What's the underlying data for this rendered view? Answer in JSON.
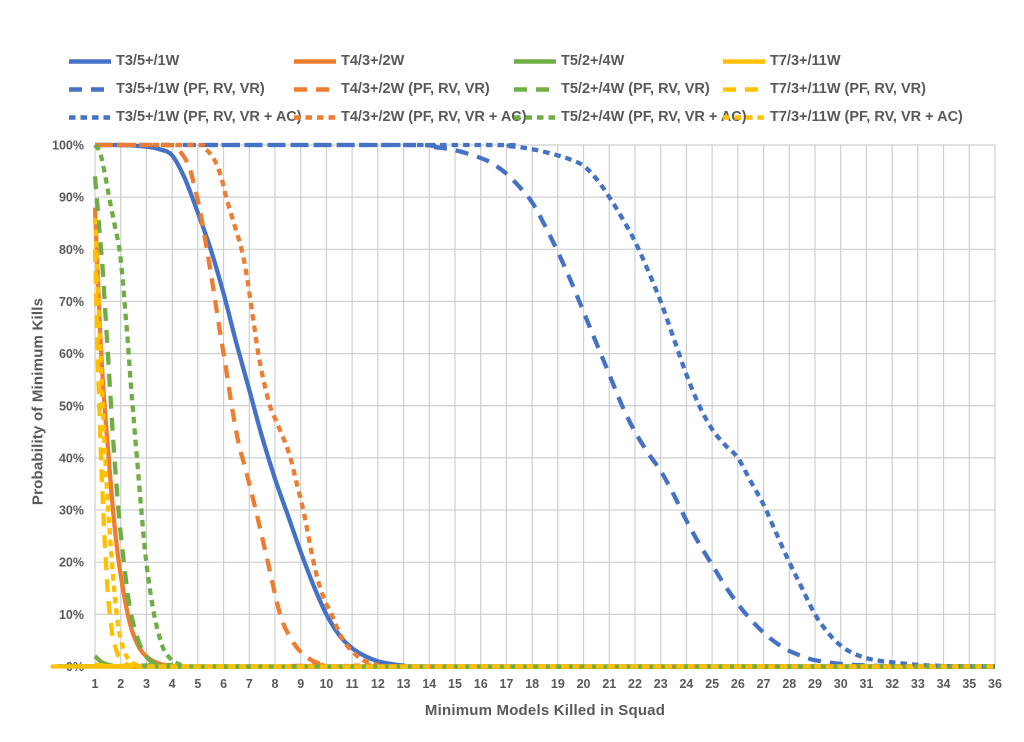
{
  "chart_data": {
    "type": "line",
    "title": "",
    "xlabel": "Minimum Models Killed in Squad",
    "ylabel": "Probability of Minimum Kills",
    "x_range": [
      1,
      36
    ],
    "x_tick_step": 1,
    "x_tick_labels": [
      "1",
      "2",
      "3",
      "4",
      "5",
      "6",
      "7",
      "8",
      "9",
      "10",
      "11",
      "12",
      "13",
      "14",
      "15",
      "16",
      "17",
      "18",
      "19",
      "20",
      "21",
      "22",
      "23",
      "24",
      "25",
      "26",
      "27",
      "28",
      "29",
      "30",
      "31",
      "32",
      "33",
      "34",
      "35",
      "36"
    ],
    "y_range_percent": [
      0,
      100
    ],
    "y_tick_step_percent": 10,
    "y_tick_labels": [
      "0%",
      "10%",
      "20%",
      "30%",
      "40%",
      "50%",
      "60%",
      "70%",
      "80%",
      "90%",
      "100%"
    ],
    "grid": true,
    "legend_position": "top",
    "colors": {
      "grid": "#cfcfcf",
      "text": "#595959",
      "background": "#ffffff",
      "blue": "#4472C4",
      "orange": "#ED7D31",
      "green": "#70AD47",
      "yellow": "#FFC000"
    },
    "series": [
      {
        "id": "t3-base",
        "name": "T3/5+/1W",
        "color": "#4472C4",
        "dash": "solid",
        "points": [
          [
            1,
            100
          ],
          [
            2,
            100
          ],
          [
            3,
            99.7
          ],
          [
            3.5,
            99.2
          ],
          [
            4,
            98
          ],
          [
            4.5,
            93.5
          ],
          [
            5,
            87
          ],
          [
            5.5,
            80
          ],
          [
            6,
            71.5
          ],
          [
            6.5,
            62
          ],
          [
            7,
            53
          ],
          [
            7.5,
            44
          ],
          [
            8,
            36
          ],
          [
            8.5,
            29
          ],
          [
            9,
            22
          ],
          [
            9.5,
            15.5
          ],
          [
            10,
            10
          ],
          [
            10.5,
            6
          ],
          [
            11,
            3.5
          ],
          [
            11.5,
            2
          ],
          [
            12,
            1
          ],
          [
            12.5,
            0.5
          ],
          [
            13,
            0.2
          ],
          [
            14,
            0
          ],
          [
            36,
            0
          ]
        ]
      },
      {
        "id": "t4-base",
        "name": "T4/3+/2W",
        "color": "#ED7D31",
        "dash": "solid",
        "points": [
          [
            1,
            88
          ],
          [
            1.1,
            76
          ],
          [
            1.2,
            64
          ],
          [
            1.3,
            55
          ],
          [
            1.4,
            48
          ],
          [
            1.5,
            42
          ],
          [
            1.7,
            30
          ],
          [
            1.9,
            21
          ],
          [
            2.1,
            14.5
          ],
          [
            2.3,
            9.5
          ],
          [
            2.5,
            6
          ],
          [
            2.8,
            3
          ],
          [
            3.2,
            1.2
          ],
          [
            3.6,
            0.4
          ],
          [
            4,
            0.1
          ],
          [
            4.5,
            0
          ],
          [
            36,
            0
          ]
        ]
      },
      {
        "id": "t5-base",
        "name": "T5/2+/4W",
        "color": "#70AD47",
        "dash": "solid",
        "points": [
          [
            1,
            2
          ],
          [
            1.3,
            0.7
          ],
          [
            1.7,
            0.15
          ],
          [
            2.2,
            0
          ],
          [
            36,
            0
          ]
        ]
      },
      {
        "id": "t7-base",
        "name": "T7/3+/11W",
        "color": "#FFC000",
        "dash": "solid",
        "points": [
          [
            1,
            0.4
          ],
          [
            1.5,
            0.05
          ],
          [
            2,
            0
          ],
          [
            36,
            0
          ]
        ]
      },
      {
        "id": "t3-pf-rv-vr",
        "name": "T3/5+/1W (PF, RV, VR)",
        "color": "#4472C4",
        "dash": "long-dash",
        "points": [
          [
            1,
            100
          ],
          [
            13,
            100
          ],
          [
            14,
            99.7
          ],
          [
            15,
            99
          ],
          [
            16,
            97.5
          ],
          [
            16.5,
            96.3
          ],
          [
            17,
            94.5
          ],
          [
            17.5,
            92
          ],
          [
            18,
            89
          ],
          [
            18.5,
            84.5
          ],
          [
            19,
            79.5
          ],
          [
            19.5,
            74
          ],
          [
            20,
            68
          ],
          [
            20.5,
            62
          ],
          [
            21,
            56
          ],
          [
            21.5,
            50
          ],
          [
            22,
            45
          ],
          [
            22.5,
            41
          ],
          [
            23,
            37.5
          ],
          [
            23.5,
            33
          ],
          [
            24,
            28
          ],
          [
            24.5,
            23.5
          ],
          [
            25,
            19.5
          ],
          [
            25.5,
            15.5
          ],
          [
            26,
            12
          ],
          [
            26.5,
            9
          ],
          [
            27,
            6.5
          ],
          [
            27.5,
            4.5
          ],
          [
            28,
            3
          ],
          [
            28.5,
            2
          ],
          [
            29,
            1.2
          ],
          [
            30,
            0.5
          ],
          [
            31,
            0.2
          ],
          [
            32,
            0.05
          ],
          [
            33,
            0
          ],
          [
            36,
            0
          ]
        ]
      },
      {
        "id": "t4-pf-rv-vr",
        "name": "T4/3+/2W (PF, RV, VR)",
        "color": "#ED7D31",
        "dash": "long-dash",
        "points": [
          [
            1,
            100
          ],
          [
            3.8,
            100
          ],
          [
            4.2,
            99.3
          ],
          [
            4.6,
            96.5
          ],
          [
            4.85,
            92.5
          ],
          [
            5.1,
            87
          ],
          [
            5.35,
            80
          ],
          [
            5.6,
            72.5
          ],
          [
            5.85,
            64.5
          ],
          [
            6.1,
            57
          ],
          [
            6.35,
            49
          ],
          [
            6.6,
            42.5
          ],
          [
            6.9,
            37
          ],
          [
            7.3,
            29
          ],
          [
            7.7,
            20.5
          ],
          [
            8.2,
            10
          ],
          [
            8.6,
            5.5
          ],
          [
            9,
            2.8
          ],
          [
            9.5,
            1
          ],
          [
            10,
            0.3
          ],
          [
            10.6,
            0
          ],
          [
            36,
            0
          ]
        ]
      },
      {
        "id": "t5-pf-rv-vr",
        "name": "T5/2+/4W (PF, RV, VR)",
        "color": "#70AD47",
        "dash": "long-dash",
        "points": [
          [
            1,
            94
          ],
          [
            1.1,
            88
          ],
          [
            1.2,
            82
          ],
          [
            1.3,
            76
          ],
          [
            1.4,
            68
          ],
          [
            1.5,
            60
          ],
          [
            1.6,
            52
          ],
          [
            1.7,
            44
          ],
          [
            1.8,
            37
          ],
          [
            1.95,
            28
          ],
          [
            2.1,
            21
          ],
          [
            2.3,
            13
          ],
          [
            2.5,
            8
          ],
          [
            2.8,
            3.5
          ],
          [
            3.1,
            1.3
          ],
          [
            3.5,
            0.3
          ],
          [
            4,
            0
          ],
          [
            36,
            0
          ]
        ]
      },
      {
        "id": "t7-pf-rv-vr",
        "name": "T7/3+/11W (PF, RV, VR)",
        "color": "#FFC000",
        "dash": "long-dash",
        "points": [
          [
            1,
            80
          ],
          [
            1.03,
            74
          ],
          [
            1.07,
            66
          ],
          [
            1.12,
            57
          ],
          [
            1.18,
            48
          ],
          [
            1.25,
            38
          ],
          [
            1.32,
            30
          ],
          [
            1.4,
            22
          ],
          [
            1.5,
            14
          ],
          [
            1.6,
            9
          ],
          [
            1.7,
            5.5
          ],
          [
            1.85,
            2.8
          ],
          [
            2,
            1.3
          ],
          [
            2.2,
            0.5
          ],
          [
            2.5,
            0.1
          ],
          [
            2.9,
            0
          ],
          [
            36,
            0
          ]
        ]
      },
      {
        "id": "t3-pf-rv-vr-ac",
        "name": "T3/5+/1W (PF, RV, VR + AC)",
        "color": "#4472C4",
        "dash": "short-dash",
        "points": [
          [
            1,
            100
          ],
          [
            16,
            100
          ],
          [
            17,
            99.8
          ],
          [
            18,
            99.2
          ],
          [
            19,
            98
          ],
          [
            19.5,
            97.2
          ],
          [
            20,
            96
          ],
          [
            20.5,
            93.5
          ],
          [
            21,
            90
          ],
          [
            21.5,
            86
          ],
          [
            22,
            81.5
          ],
          [
            22.5,
            76
          ],
          [
            23,
            70
          ],
          [
            23.5,
            63
          ],
          [
            24,
            56
          ],
          [
            24.5,
            50
          ],
          [
            25,
            45.5
          ],
          [
            25.5,
            42.5
          ],
          [
            26,
            40
          ],
          [
            26.5,
            35.5
          ],
          [
            27,
            31
          ],
          [
            27.5,
            25.5
          ],
          [
            28,
            20
          ],
          [
            28.5,
            15
          ],
          [
            29,
            10
          ],
          [
            29.5,
            6.5
          ],
          [
            30,
            4
          ],
          [
            30.5,
            2.5
          ],
          [
            31,
            1.6
          ],
          [
            31.5,
            1.1
          ],
          [
            32,
            0.8
          ],
          [
            33,
            0.3
          ],
          [
            34,
            0.1
          ],
          [
            35,
            0
          ],
          [
            36,
            0
          ]
        ]
      },
      {
        "id": "t4-pf-rv-vr-ac",
        "name": "T4/3+/2W (PF, RV, VR + AC)",
        "color": "#ED7D31",
        "dash": "short-dash",
        "points": [
          [
            1,
            100
          ],
          [
            4.8,
            100
          ],
          [
            5.2,
            99.6
          ],
          [
            5.6,
            97.5
          ],
          [
            5.9,
            94
          ],
          [
            6.1,
            90
          ],
          [
            6.4,
            85
          ],
          [
            6.7,
            80
          ],
          [
            6.9,
            75
          ],
          [
            7.05,
            70
          ],
          [
            7.2,
            65
          ],
          [
            7.35,
            60
          ],
          [
            7.55,
            55
          ],
          [
            7.8,
            50
          ],
          [
            8.05,
            47
          ],
          [
            8.35,
            43.5
          ],
          [
            8.6,
            40
          ],
          [
            8.85,
            35
          ],
          [
            9.1,
            30
          ],
          [
            9.3,
            25
          ],
          [
            9.5,
            20
          ],
          [
            9.7,
            16
          ],
          [
            9.95,
            12.5
          ],
          [
            10.2,
            10
          ],
          [
            10.5,
            6.5
          ],
          [
            10.8,
            4
          ],
          [
            11.2,
            2
          ],
          [
            11.6,
            0.8
          ],
          [
            12,
            0.3
          ],
          [
            12.6,
            0
          ],
          [
            36,
            0
          ]
        ]
      },
      {
        "id": "t5-pf-rv-vr-ac",
        "name": "T5/2+/4W (PF, RV, VR + AC)",
        "color": "#70AD47",
        "dash": "short-dash",
        "points": [
          [
            1,
            100
          ],
          [
            1.2,
            98.5
          ],
          [
            1.4,
            94
          ],
          [
            1.55,
            90
          ],
          [
            1.75,
            85
          ],
          [
            1.95,
            80
          ],
          [
            2.08,
            74
          ],
          [
            2.18,
            68
          ],
          [
            2.28,
            62
          ],
          [
            2.38,
            55
          ],
          [
            2.48,
            49
          ],
          [
            2.58,
            43
          ],
          [
            2.7,
            36
          ],
          [
            2.82,
            29
          ],
          [
            2.95,
            22
          ],
          [
            3.1,
            16
          ],
          [
            3.3,
            10
          ],
          [
            3.5,
            5.8
          ],
          [
            3.7,
            3
          ],
          [
            4,
            1.2
          ],
          [
            4.3,
            0.4
          ],
          [
            4.8,
            0
          ],
          [
            36,
            0
          ]
        ]
      },
      {
        "id": "t7-pf-rv-vr-ac",
        "name": "T7/3+/11W (PF, RV, VR + AC)",
        "color": "#FFC000",
        "dash": "short-dash",
        "points": [
          [
            1,
            86
          ],
          [
            1.06,
            80
          ],
          [
            1.12,
            72
          ],
          [
            1.2,
            62
          ],
          [
            1.3,
            50
          ],
          [
            1.4,
            40
          ],
          [
            1.5,
            31
          ],
          [
            1.6,
            24
          ],
          [
            1.7,
            17.5
          ],
          [
            1.8,
            12
          ],
          [
            1.9,
            8
          ],
          [
            2,
            5.2
          ],
          [
            2.2,
            2.2
          ],
          [
            2.4,
            0.9
          ],
          [
            2.7,
            0.2
          ],
          [
            3.1,
            0
          ],
          [
            36,
            0
          ]
        ]
      }
    ]
  }
}
